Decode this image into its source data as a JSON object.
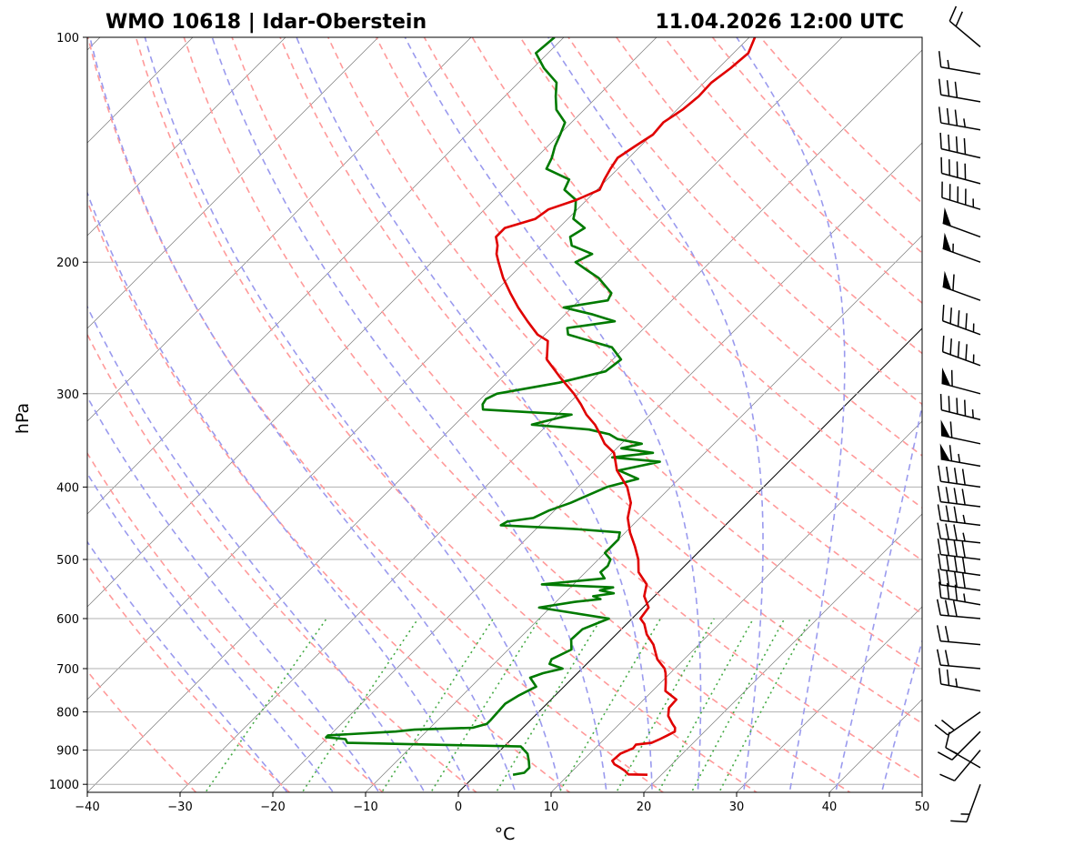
{
  "chart_data": {
    "type": "line",
    "chart_kind": "Skew-T log-P sounding",
    "title_left": "WMO 10618 | Idar-Oberstein",
    "title_right": "11.04.2026 12:00 UTC",
    "xlabel": "°C",
    "ylabel": "hPa",
    "xlim": [
      -40,
      50
    ],
    "ylim": [
      1025,
      100
    ],
    "x_ticks": [
      -40,
      -30,
      -20,
      -10,
      0,
      10,
      20,
      30,
      40,
      50
    ],
    "x_tick_labels": [
      "−40",
      "−30",
      "−20",
      "−10",
      "0",
      "10",
      "20",
      "30",
      "40",
      "50"
    ],
    "y_ticks": [
      1000,
      900,
      800,
      700,
      600,
      500,
      400,
      300,
      200,
      100
    ],
    "y_tick_labels": [
      "1000",
      "900",
      "800",
      "700",
      "600",
      "500",
      "400",
      "300",
      "200",
      "100"
    ],
    "colors": {
      "temperature": "#e00000",
      "dewpoint": "#007a00",
      "dry_adiabat": "#ff9a9a",
      "moist_adiabat": "#9a9aee",
      "mixing_ratio": "#44aa44",
      "isotherm": "#7a7a7a",
      "isobar": "#b0b0b0",
      "zero_isotherm": "#000000"
    },
    "series": [
      {
        "name": "Temperature",
        "pressure": [
          971,
          970,
          960,
          950,
          940,
          930,
          910,
          895,
          885,
          880,
          870,
          860,
          850,
          840,
          830,
          810,
          790,
          770,
          750,
          730,
          710,
          700,
          680,
          650,
          630,
          610,
          600,
          580,
          560,
          540,
          520,
          500,
          480,
          460,
          440,
          420,
          400,
          380,
          360,
          350,
          340,
          330,
          320,
          310,
          300,
          285,
          270,
          255,
          250,
          240,
          230,
          220,
          210,
          200,
          195,
          190,
          185,
          180,
          175,
          170,
          165,
          160,
          155,
          150,
          145,
          140,
          135,
          130,
          125,
          120,
          115,
          110,
          105,
          100
        ],
        "temperature": [
          18.5,
          16.4,
          15.7,
          14.8,
          13.8,
          13.2,
          13.3,
          14.1,
          14.0,
          15.5,
          16.0,
          16.4,
          16.8,
          16.4,
          15.7,
          14.4,
          13.6,
          13.5,
          11.4,
          10.5,
          9.5,
          8.9,
          7.1,
          5.1,
          3.3,
          1.9,
          0.9,
          0.6,
          -1.1,
          -2.1,
          -4.3,
          -5.7,
          -7.5,
          -9.5,
          -11.3,
          -12.6,
          -14.7,
          -17.6,
          -19.8,
          -21.8,
          -23.3,
          -24.9,
          -26.9,
          -28.6,
          -30.5,
          -33.8,
          -37.1,
          -39.0,
          -40.8,
          -43.3,
          -45.8,
          -48.2,
          -50.6,
          -52.8,
          -53.9,
          -54.7,
          -55.8,
          -55.8,
          -53.5,
          -53.1,
          -51.1,
          -49.7,
          -50.3,
          -50.8,
          -51.2,
          -50.6,
          -49.9,
          -50.1,
          -49.4,
          -49.1,
          -49.2,
          -48.7,
          -48.4,
          -49.4
        ]
      },
      {
        "name": "Dewpoint",
        "pressure": [
          971,
          965,
          950,
          930,
          910,
          890,
          880,
          870,
          865,
          860,
          850,
          845,
          840,
          830,
          820,
          800,
          780,
          760,
          740,
          720,
          710,
          700,
          690,
          680,
          660,
          640,
          620,
          600,
          580,
          570,
          565,
          560,
          555,
          550,
          545,
          540,
          530,
          520,
          510,
          500,
          490,
          470,
          460,
          455,
          450,
          445,
          440,
          430,
          420,
          400,
          390,
          380,
          370,
          365,
          360,
          355,
          350,
          345,
          340,
          335,
          330,
          320,
          315,
          310,
          305,
          300,
          290,
          280,
          270,
          260,
          250,
          245,
          240,
          235,
          230,
          225,
          220,
          210,
          205,
          200,
          195,
          190,
          185,
          180,
          175,
          170,
          165,
          160,
          155,
          150,
          145,
          140,
          135,
          130,
          125,
          120,
          115,
          110,
          105,
          100
        ],
        "dewpoint": [
          4.0,
          5.0,
          5.0,
          4.2,
          3.3,
          1.8,
          -17.3,
          -17.9,
          -20.2,
          -20.2,
          -13.3,
          -11.5,
          -5.4,
          -4.3,
          -4.3,
          -4.4,
          -4.5,
          -3.9,
          -3.0,
          -4.6,
          -3.7,
          -2.1,
          -4.0,
          -4.3,
          -3.2,
          -4.3,
          -4.2,
          -2.5,
          -11.2,
          -8.0,
          -5.5,
          -6.6,
          -4.7,
          -6.5,
          -5.4,
          -13.4,
          -7.3,
          -8.4,
          -8.3,
          -8.7,
          -10.0,
          -10.0,
          -10.6,
          -16.0,
          -24.2,
          -23.9,
          -21.5,
          -20.6,
          -19.1,
          -16.9,
          -14.4,
          -17.4,
          -13.9,
          -19.5,
          -15.6,
          -19.5,
          -17.8,
          -20.9,
          -22.3,
          -25.0,
          -31.7,
          -28.5,
          -38.6,
          -39.2,
          -39.4,
          -38.8,
          -33.3,
          -29.5,
          -29.1,
          -31.4,
          -37.5,
          -38.3,
          -33.9,
          -37.0,
          -40.9,
          -36.9,
          -37.3,
          -40.3,
          -42.4,
          -44.5,
          -43.6,
          -46.7,
          -47.8,
          -47.2,
          -49.4,
          -50.2,
          -51.2,
          -53.5,
          -54.1,
          -57.7,
          -58.3,
          -59.2,
          -59.9,
          -60.7,
          -63.0,
          -64.5,
          -65.9,
          -68.8,
          -71.3,
          -71.0
        ]
      }
    ],
    "wind_barbs": {
      "units": "kt",
      "pressure": [
        1000,
        950,
        900,
        850,
        800,
        750,
        700,
        650,
        600,
        575,
        550,
        525,
        500,
        475,
        450,
        425,
        400,
        375,
        350,
        325,
        300,
        275,
        250,
        225,
        200,
        185,
        170,
        157,
        145,
        133,
        122,
        112,
        103
      ],
      "direction": [
        200,
        300,
        220,
        225,
        235,
        280,
        275,
        275,
        275,
        280,
        278,
        278,
        277,
        276,
        277,
        277,
        278,
        280,
        282,
        284,
        285,
        290,
        290,
        290,
        290,
        290,
        287,
        285,
        283,
        280,
        280,
        280,
        310
      ],
      "speed": [
        15,
        8,
        12,
        15,
        20,
        24,
        18,
        20,
        29,
        33,
        38,
        42,
        40,
        36,
        34,
        38,
        42,
        64,
        62,
        46,
        62,
        44,
        45,
        58,
        56,
        48,
        46,
        42,
        40,
        35,
        32,
        14,
        22
      ]
    }
  }
}
